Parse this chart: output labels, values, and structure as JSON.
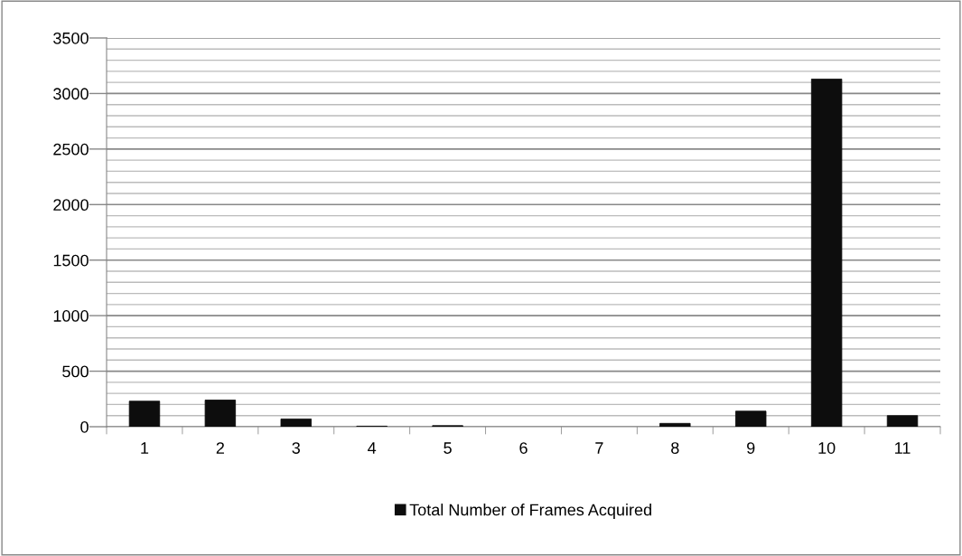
{
  "chart_data": {
    "type": "bar",
    "categories": [
      "1",
      "2",
      "3",
      "4",
      "5",
      "6",
      "7",
      "8",
      "9",
      "10",
      "11"
    ],
    "series": [
      {
        "name": "Total Number of Frames Acquired",
        "color": "#0d0d0d",
        "values": [
          230,
          240,
          70,
          5,
          10,
          null,
          null,
          30,
          140,
          3130,
          100
        ]
      }
    ],
    "ylim": [
      0,
      3500
    ],
    "yticks": [
      0,
      {
        "value": 100,
        "label": null
      },
      {
        "value": 200,
        "label": null
      },
      {
        "value": 300,
        "label": null
      },
      {
        "value": 400,
        "label": null
      },
      500,
      {
        "value": 600,
        "label": null
      },
      {
        "value": 700,
        "label": null
      },
      {
        "value": 800,
        "label": null
      },
      {
        "value": 900,
        "label": null
      },
      1000,
      {
        "value": 1100,
        "label": null
      },
      {
        "value": 1200,
        "label": null
      },
      {
        "value": 1300,
        "label": null
      },
      {
        "value": 1400,
        "label": null
      },
      1500,
      {
        "value": 1600,
        "label": null
      },
      {
        "value": 1700,
        "label": null
      },
      {
        "value": 1800,
        "label": null
      },
      {
        "value": 1900,
        "label": null
      },
      2000,
      {
        "value": 2100,
        "label": null
      },
      {
        "value": 2200,
        "label": null
      },
      {
        "value": 2300,
        "label": null
      },
      {
        "value": 2400,
        "label": null
      },
      2500,
      {
        "value": 2600,
        "label": null
      },
      {
        "value": 2700,
        "label": null
      },
      {
        "value": 2800,
        "label": null
      },
      {
        "value": 2900,
        "label": null
      },
      3000,
      {
        "value": 3100,
        "label": null
      },
      {
        "value": 3200,
        "label": null
      },
      {
        "value": 3300,
        "label": null
      },
      {
        "value": 3400,
        "label": null
      },
      3500
    ],
    "grid": "y",
    "legend": "bottom"
  }
}
